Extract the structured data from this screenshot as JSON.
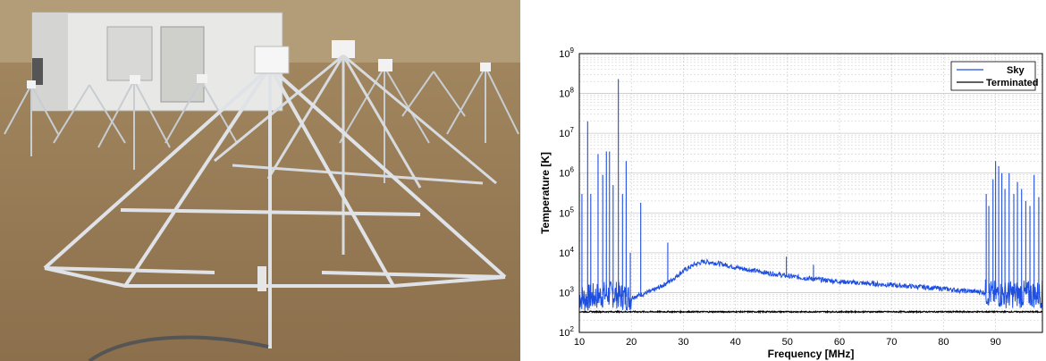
{
  "photo": {
    "subject": "Field photo: array of aluminum pyramidal antenna frames with white pods on top, in a dry grass field in front of a white equipment shelter"
  },
  "colors": {
    "sky": "#1f4fe0",
    "terminated": "#000000",
    "grid": "#c8c8c8"
  },
  "chart_data": {
    "type": "line",
    "xlabel": "Frequency [MHz]",
    "ylabel": "Temperature [K]",
    "xlim": [
      10,
      99
    ],
    "ylim": [
      100,
      1000000000
    ],
    "yscale": "log",
    "grid": true,
    "legend_position": "top-right",
    "x_ticks": [
      10,
      20,
      30,
      40,
      50,
      60,
      70,
      80,
      90
    ],
    "y_ticks": [
      2,
      3,
      4,
      5,
      6,
      7,
      8,
      9
    ],
    "series": [
      {
        "name": "Sky",
        "x": [
          10,
          11,
          12,
          13,
          15,
          17,
          18,
          20,
          22,
          24,
          26,
          28,
          30,
          32,
          34,
          36,
          38,
          40,
          45,
          50,
          55,
          60,
          65,
          70,
          75,
          80,
          84,
          87,
          88,
          90,
          92,
          95,
          99
        ],
        "y": [
          800,
          700,
          750,
          800,
          900,
          900,
          800,
          750,
          900,
          1100,
          1500,
          2200,
          3500,
          5000,
          6000,
          5600,
          5000,
          4300,
          3300,
          2600,
          2200,
          1900,
          1700,
          1550,
          1400,
          1250,
          1100,
          1050,
          1000,
          900,
          900,
          900,
          900
        ],
        "spikes": [
          {
            "x": 10.5,
            "y": 300000
          },
          {
            "x": 11.6,
            "y": 20000000
          },
          {
            "x": 12.2,
            "y": 300000
          },
          {
            "x": 13.6,
            "y": 3000000
          },
          {
            "x": 14.5,
            "y": 900000
          },
          {
            "x": 15.2,
            "y": 3500000
          },
          {
            "x": 15.8,
            "y": 3500000
          },
          {
            "x": 16.5,
            "y": 500000
          },
          {
            "x": 17.5,
            "y": 230000000
          },
          {
            "x": 18.3,
            "y": 300000
          },
          {
            "x": 19.0,
            "y": 2000000
          },
          {
            "x": 19.8,
            "y": 10000
          },
          {
            "x": 21.8,
            "y": 180000
          },
          {
            "x": 27.0,
            "y": 18000
          },
          {
            "x": 49.8,
            "y": 8000
          },
          {
            "x": 55.0,
            "y": 5000
          },
          {
            "x": 88.2,
            "y": 300000
          },
          {
            "x": 88.7,
            "y": 150000
          },
          {
            "x": 89.5,
            "y": 700000
          },
          {
            "x": 90.0,
            "y": 2000000
          },
          {
            "x": 90.6,
            "y": 1500000
          },
          {
            "x": 91.2,
            "y": 1000000
          },
          {
            "x": 91.8,
            "y": 400000
          },
          {
            "x": 92.6,
            "y": 1000000
          },
          {
            "x": 93.5,
            "y": 300000
          },
          {
            "x": 94.2,
            "y": 600000
          },
          {
            "x": 95.0,
            "y": 400000
          },
          {
            "x": 95.8,
            "y": 200000
          },
          {
            "x": 96.6,
            "y": 150000
          },
          {
            "x": 97.4,
            "y": 900000
          },
          {
            "x": 98.3,
            "y": 250000
          }
        ]
      },
      {
        "name": "Terminated",
        "x": [
          10,
          99
        ],
        "y": [
          330,
          330
        ]
      }
    ]
  }
}
